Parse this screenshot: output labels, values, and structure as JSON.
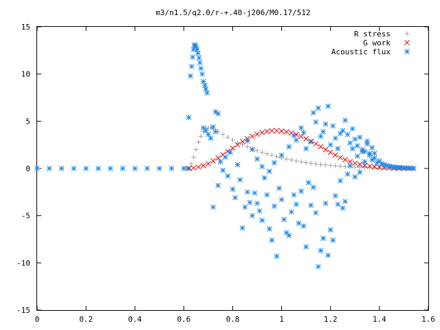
{
  "chart_data": {
    "type": "scatter",
    "title": "m3/n1.5/q2.0/r-+.40-j206/M0.17/512",
    "xlabel": "",
    "ylabel": "",
    "xlim": [
      0,
      1.6
    ],
    "ylim": [
      -15,
      15
    ],
    "x_ticks": [
      0,
      0.2,
      0.4,
      0.6,
      0.8,
      1,
      1.2,
      1.4,
      1.6
    ],
    "y_ticks": [
      -15,
      -10,
      -5,
      0,
      5,
      10,
      15
    ],
    "x_tick_labels": [
      "0",
      "0.2",
      "0.4",
      "0.6",
      "0.8",
      "1",
      "1.2",
      "1.4",
      "1.6"
    ],
    "y_tick_labels": [
      "-15",
      "-10",
      "-5",
      "0",
      "5",
      "10",
      "15"
    ],
    "grid": false,
    "legend_position": "top-right",
    "series": [
      {
        "name": "R stress",
        "marker": "+",
        "color": "#a0a0a0",
        "points": [
          [
            0.622,
            0.0
          ],
          [
            0.63,
            0.5
          ],
          [
            0.64,
            1.2
          ],
          [
            0.65,
            2.0
          ],
          [
            0.66,
            2.8
          ],
          [
            0.67,
            3.4
          ],
          [
            0.68,
            3.9
          ],
          [
            0.69,
            4.2
          ],
          [
            0.7,
            4.3
          ],
          [
            0.71,
            4.3
          ],
          [
            0.72,
            4.2
          ],
          [
            0.74,
            3.9
          ],
          [
            0.76,
            3.6
          ],
          [
            0.78,
            3.3
          ],
          [
            0.8,
            3.0
          ],
          [
            0.82,
            2.7
          ],
          [
            0.84,
            2.5
          ],
          [
            0.86,
            2.3
          ],
          [
            0.88,
            2.1
          ],
          [
            0.9,
            1.9
          ],
          [
            0.92,
            1.7
          ],
          [
            0.94,
            1.55
          ],
          [
            0.96,
            1.4
          ],
          [
            0.98,
            1.25
          ],
          [
            1.0,
            1.12
          ],
          [
            1.02,
            1.0
          ],
          [
            1.04,
            0.9
          ],
          [
            1.06,
            0.8
          ],
          [
            1.08,
            0.7
          ],
          [
            1.1,
            0.62
          ],
          [
            1.12,
            0.55
          ],
          [
            1.14,
            0.48
          ],
          [
            1.16,
            0.42
          ],
          [
            1.18,
            0.37
          ],
          [
            1.2,
            0.32
          ],
          [
            1.22,
            0.27
          ],
          [
            1.24,
            0.23
          ],
          [
            1.26,
            0.2
          ],
          [
            1.28,
            0.17
          ],
          [
            1.3,
            0.14
          ],
          [
            1.32,
            0.12
          ],
          [
            1.34,
            0.1
          ],
          [
            1.36,
            0.08
          ],
          [
            1.38,
            0.06
          ],
          [
            1.4,
            0.05
          ],
          [
            1.42,
            0.04
          ],
          [
            1.44,
            0.03
          ],
          [
            1.46,
            0.02
          ],
          [
            1.48,
            0.015
          ],
          [
            1.5,
            0.01
          ],
          [
            1.52,
            0.005
          ],
          [
            1.54,
            0.0
          ]
        ]
      },
      {
        "name": "G work",
        "marker": "x",
        "color": "#e00000",
        "points": [
          [
            0.622,
            0.0
          ],
          [
            0.64,
            0.05
          ],
          [
            0.66,
            0.15
          ],
          [
            0.68,
            0.3
          ],
          [
            0.7,
            0.5
          ],
          [
            0.72,
            0.8
          ],
          [
            0.74,
            1.1
          ],
          [
            0.76,
            1.45
          ],
          [
            0.78,
            1.8
          ],
          [
            0.8,
            2.15
          ],
          [
            0.82,
            2.5
          ],
          [
            0.84,
            2.85
          ],
          [
            0.86,
            3.15
          ],
          [
            0.88,
            3.4
          ],
          [
            0.9,
            3.62
          ],
          [
            0.92,
            3.8
          ],
          [
            0.94,
            3.92
          ],
          [
            0.96,
            3.99
          ],
          [
            0.98,
            4.0
          ],
          [
            1.0,
            3.96
          ],
          [
            1.02,
            3.88
          ],
          [
            1.04,
            3.75
          ],
          [
            1.06,
            3.58
          ],
          [
            1.08,
            3.38
          ],
          [
            1.1,
            3.14
          ],
          [
            1.12,
            2.88
          ],
          [
            1.14,
            2.6
          ],
          [
            1.16,
            2.3
          ],
          [
            1.18,
            2.0
          ],
          [
            1.2,
            1.7
          ],
          [
            1.22,
            1.42
          ],
          [
            1.24,
            1.15
          ],
          [
            1.26,
            0.92
          ],
          [
            1.28,
            0.72
          ],
          [
            1.3,
            0.55
          ],
          [
            1.32,
            0.42
          ],
          [
            1.34,
            0.32
          ],
          [
            1.36,
            0.24
          ],
          [
            1.38,
            0.17
          ],
          [
            1.4,
            0.12
          ],
          [
            1.42,
            0.08
          ],
          [
            1.44,
            0.05
          ],
          [
            1.46,
            0.03
          ],
          [
            1.48,
            0.02
          ],
          [
            1.5,
            0.01
          ],
          [
            1.52,
            0.005
          ],
          [
            1.54,
            0.0
          ]
        ]
      },
      {
        "name": "Acoustic flux",
        "marker": "*",
        "color": "#1e88e5",
        "points": [
          [
            0.0,
            0.0
          ],
          [
            0.05,
            0.0
          ],
          [
            0.1,
            0.0
          ],
          [
            0.15,
            0.0
          ],
          [
            0.2,
            0.0
          ],
          [
            0.25,
            0.0
          ],
          [
            0.3,
            0.0
          ],
          [
            0.35,
            0.0
          ],
          [
            0.4,
            0.0
          ],
          [
            0.45,
            0.0
          ],
          [
            0.5,
            0.0
          ],
          [
            0.55,
            0.0
          ],
          [
            0.6,
            0.0
          ],
          [
            0.615,
            0.0
          ],
          [
            0.62,
            5.4
          ],
          [
            0.627,
            9.8
          ],
          [
            0.632,
            10.8
          ],
          [
            0.636,
            11.8
          ],
          [
            0.64,
            12.6
          ],
          [
            0.643,
            13.0
          ],
          [
            0.646,
            13.1
          ],
          [
            0.65,
            12.9
          ],
          [
            0.654,
            12.6
          ],
          [
            0.658,
            12.2
          ],
          [
            0.662,
            11.7
          ],
          [
            0.666,
            11.2
          ],
          [
            0.67,
            10.6
          ],
          [
            0.675,
            10.0
          ],
          [
            0.68,
            9.2
          ],
          [
            0.686,
            8.8
          ],
          [
            0.69,
            8.4
          ],
          [
            0.695,
            8.0
          ],
          [
            0.68,
            4.3
          ],
          [
            0.69,
            4.0
          ],
          [
            0.7,
            3.6
          ],
          [
            0.71,
            3.2
          ],
          [
            0.72,
            4.4
          ],
          [
            0.73,
            6.0
          ],
          [
            0.74,
            5.8
          ],
          [
            0.73,
            3.9
          ],
          [
            0.72,
            -4.1
          ],
          [
            0.74,
            -1.8
          ],
          [
            0.75,
            0.7
          ],
          [
            0.76,
            -0.2
          ],
          [
            0.77,
            1.2
          ],
          [
            0.78,
            -0.8
          ],
          [
            0.79,
            1.7
          ],
          [
            0.8,
            -2.2
          ],
          [
            0.81,
            -3.1
          ],
          [
            0.82,
            0.4
          ],
          [
            0.83,
            -1.2
          ],
          [
            0.84,
            -6.3
          ],
          [
            0.85,
            -4.1
          ],
          [
            0.86,
            -2.5
          ],
          [
            0.87,
            -3.6
          ],
          [
            0.88,
            -5.0
          ],
          [
            0.89,
            -2.6
          ],
          [
            0.9,
            -3.7
          ],
          [
            0.91,
            -4.5
          ],
          [
            0.92,
            -5.5
          ],
          [
            0.93,
            -1.0
          ],
          [
            0.94,
            -2.8
          ],
          [
            0.95,
            -6.4
          ],
          [
            0.96,
            -7.6
          ],
          [
            0.97,
            -4.0
          ],
          [
            0.98,
            -9.3
          ],
          [
            0.99,
            -2.1
          ],
          [
            1.0,
            -3.3
          ],
          [
            1.01,
            -5.4
          ],
          [
            1.02,
            -6.8
          ],
          [
            1.03,
            -7.1
          ],
          [
            1.04,
            -4.6
          ],
          [
            1.05,
            -2.8
          ],
          [
            1.06,
            -3.8
          ],
          [
            1.07,
            -5.8
          ],
          [
            1.08,
            -2.4
          ],
          [
            1.09,
            -6.1
          ],
          [
            1.1,
            -8.3
          ],
          [
            1.11,
            -1.5
          ],
          [
            1.12,
            -3.9
          ],
          [
            1.13,
            -2.0
          ],
          [
            1.14,
            -4.7
          ],
          [
            1.15,
            -10.4
          ],
          [
            1.16,
            -8.7
          ],
          [
            1.17,
            -7.4
          ],
          [
            1.18,
            -3.7
          ],
          [
            1.19,
            -9.2
          ],
          [
            1.2,
            -6.5
          ],
          [
            1.21,
            -7.6
          ],
          [
            1.22,
            -2.9
          ],
          [
            1.23,
            -3.8
          ],
          [
            1.24,
            -1.3
          ],
          [
            1.25,
            -4.2
          ],
          [
            1.26,
            -3.5
          ],
          [
            1.27,
            -0.6
          ],
          [
            1.28,
            0.3
          ],
          [
            1.29,
            2.1
          ],
          [
            1.3,
            -0.9
          ],
          [
            1.31,
            1.3
          ],
          [
            1.32,
            -0.4
          ],
          [
            1.33,
            1.8
          ],
          [
            1.34,
            0.7
          ],
          [
            1.35,
            2.6
          ],
          [
            1.36,
            1.4
          ],
          [
            1.37,
            0.9
          ],
          [
            1.38,
            1.6
          ],
          [
            1.39,
            0.6
          ],
          [
            1.4,
            0.8
          ],
          [
            1.41,
            0.5
          ],
          [
            1.42,
            0.4
          ],
          [
            1.43,
            0.3
          ],
          [
            1.44,
            0.25
          ],
          [
            1.45,
            0.2
          ],
          [
            1.46,
            0.15
          ],
          [
            1.47,
            0.12
          ],
          [
            1.48,
            0.1
          ],
          [
            1.49,
            0.08
          ],
          [
            1.5,
            0.06
          ],
          [
            1.51,
            0.05
          ],
          [
            1.52,
            0.04
          ],
          [
            1.53,
            0.02
          ],
          [
            1.54,
            0.0
          ],
          [
            0.86,
            2.9
          ],
          [
            0.88,
            2.0
          ],
          [
            0.9,
            1.0
          ],
          [
            0.92,
            0.2
          ],
          [
            0.95,
            -0.3
          ],
          [
            0.97,
            0.6
          ],
          [
            1.0,
            1.4
          ],
          [
            1.03,
            2.3
          ],
          [
            1.05,
            3.5
          ],
          [
            1.06,
            3.0
          ],
          [
            1.08,
            4.3
          ],
          [
            1.09,
            3.8
          ],
          [
            1.1,
            2.1
          ],
          [
            1.12,
            2.8
          ],
          [
            1.13,
            5.9
          ],
          [
            1.14,
            4.9
          ],
          [
            1.15,
            6.4
          ],
          [
            1.16,
            3.4
          ],
          [
            1.17,
            3.9
          ],
          [
            1.18,
            4.7
          ],
          [
            1.19,
            6.6
          ],
          [
            1.2,
            2.5
          ],
          [
            1.21,
            4.5
          ],
          [
            1.22,
            3.2
          ],
          [
            1.23,
            2.1
          ],
          [
            1.24,
            3.7
          ],
          [
            1.25,
            4.0
          ],
          [
            1.26,
            5.1
          ],
          [
            1.27,
            3.6
          ],
          [
            1.28,
            2.7
          ],
          [
            1.29,
            4.2
          ],
          [
            1.3,
            3.1
          ],
          [
            1.31,
            2.4
          ],
          [
            1.32,
            3.3
          ],
          [
            1.33,
            2.0
          ],
          [
            1.34,
            1.8
          ],
          [
            1.35,
            2.9
          ],
          [
            1.36,
            1.6
          ],
          [
            1.37,
            2.2
          ],
          [
            1.38,
            1.1
          ]
        ]
      }
    ]
  }
}
